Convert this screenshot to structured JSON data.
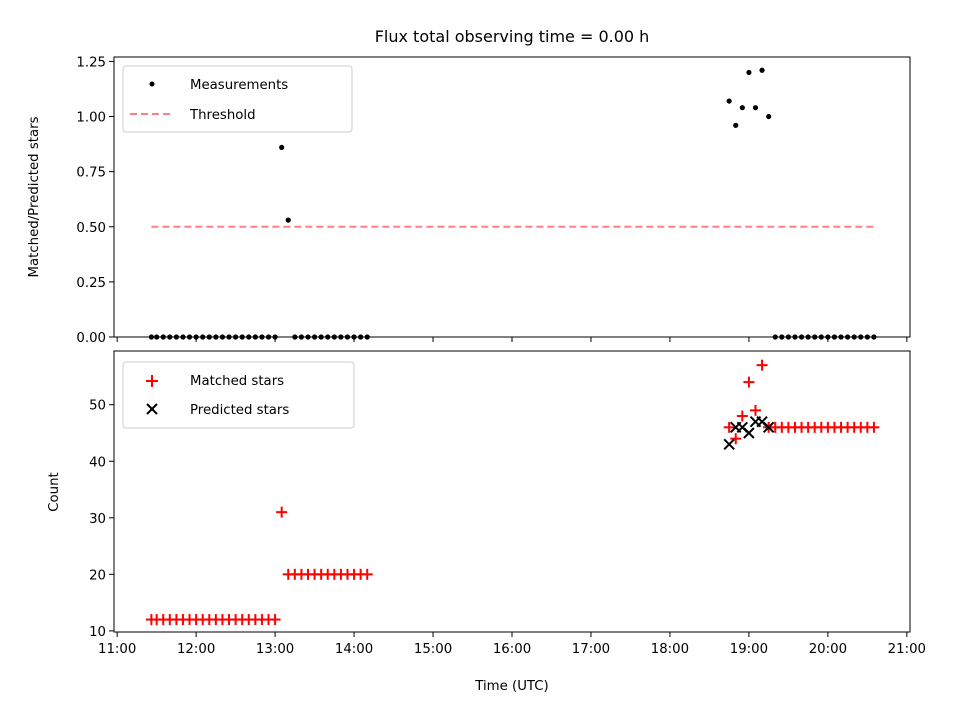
{
  "title": "Flux total observing time = 0.00 h",
  "chart_data": [
    {
      "type": "scatter",
      "ylabel": "Matched/Predicted stars",
      "xlim_hours": [
        10.96,
        21.04
      ],
      "ylim": [
        0,
        1.27
      ],
      "yticks": [
        "0.00",
        "0.25",
        "0.50",
        "0.75",
        "1.00",
        "1.25"
      ],
      "legend": {
        "placement": "top-left"
      },
      "series": [
        {
          "name": "Measurements",
          "marker": "dot",
          "color": "#000000",
          "x": [
            "11:26",
            "11:30",
            "11:35",
            "11:40",
            "11:45",
            "11:50",
            "11:55",
            "12:00",
            "12:05",
            "12:10",
            "12:15",
            "12:20",
            "12:25",
            "12:30",
            "12:35",
            "12:40",
            "12:45",
            "12:50",
            "12:55",
            "13:00",
            "13:05",
            "13:10",
            "13:15",
            "13:20",
            "13:25",
            "13:30",
            "13:35",
            "13:40",
            "13:45",
            "13:50",
            "13:55",
            "14:00",
            "14:05",
            "14:10",
            "18:45",
            "18:50",
            "18:55",
            "19:00",
            "19:05",
            "19:10",
            "19:15",
            "19:20",
            "19:25",
            "19:30",
            "19:35",
            "19:40",
            "19:45",
            "19:50",
            "19:55",
            "20:00",
            "20:05",
            "20:10",
            "20:15",
            "20:20",
            "20:25",
            "20:30",
            "20:35"
          ],
          "y": [
            0,
            0,
            0,
            0,
            0,
            0,
            0,
            0,
            0,
            0,
            0,
            0,
            0,
            0,
            0,
            0,
            0,
            0,
            0,
            0,
            0.86,
            0.53,
            0,
            0,
            0,
            0,
            0,
            0,
            0,
            0,
            0,
            0,
            0,
            0,
            1.07,
            0.96,
            1.04,
            1.2,
            1.04,
            1.21,
            1.0,
            0,
            0,
            0,
            0,
            0,
            0,
            0,
            0,
            0,
            0,
            0,
            0,
            0,
            0,
            0,
            0
          ]
        },
        {
          "name": "Threshold",
          "style": "dashed",
          "color": "#ff7f7f",
          "x": [
            "11:26",
            "20:35"
          ],
          "y": [
            0.5,
            0.5
          ]
        }
      ]
    },
    {
      "type": "scatter",
      "xlabel": "Time (UTC)",
      "ylabel": "Count",
      "xlim_hours": [
        10.96,
        21.04
      ],
      "ylim": [
        9.8,
        59.5
      ],
      "yticks": [
        "10",
        "20",
        "30",
        "40",
        "50"
      ],
      "xticks": [
        "11:00",
        "12:00",
        "13:00",
        "14:00",
        "15:00",
        "16:00",
        "17:00",
        "18:00",
        "19:00",
        "20:00",
        "21:00"
      ],
      "legend": {
        "placement": "top-left"
      },
      "series": [
        {
          "name": "Matched stars",
          "marker": "plus",
          "color": "#ff0000",
          "x": [
            "11:26",
            "11:30",
            "11:35",
            "11:40",
            "11:45",
            "11:50",
            "11:55",
            "12:00",
            "12:05",
            "12:10",
            "12:15",
            "12:20",
            "12:25",
            "12:30",
            "12:35",
            "12:40",
            "12:45",
            "12:50",
            "12:55",
            "13:00",
            "13:05",
            "13:10",
            "13:15",
            "13:20",
            "13:25",
            "13:30",
            "13:35",
            "13:40",
            "13:45",
            "13:50",
            "13:55",
            "14:00",
            "14:05",
            "14:10",
            "18:45",
            "18:50",
            "18:55",
            "19:00",
            "19:05",
            "19:10",
            "19:15",
            "19:20",
            "19:25",
            "19:30",
            "19:35",
            "19:40",
            "19:45",
            "19:50",
            "19:55",
            "20:00",
            "20:05",
            "20:10",
            "20:15",
            "20:20",
            "20:25",
            "20:30",
            "20:35"
          ],
          "y": [
            12,
            12,
            12,
            12,
            12,
            12,
            12,
            12,
            12,
            12,
            12,
            12,
            12,
            12,
            12,
            12,
            12,
            12,
            12,
            12,
            31,
            20,
            20,
            20,
            20,
            20,
            20,
            20,
            20,
            20,
            20,
            20,
            20,
            20,
            46,
            44,
            48,
            54,
            49,
            57,
            46,
            46,
            46,
            46,
            46,
            46,
            46,
            46,
            46,
            46,
            46,
            46,
            46,
            46,
            46,
            46,
            46
          ]
        },
        {
          "name": "Predicted stars",
          "marker": "x",
          "color": "#000000",
          "x": [
            "18:45",
            "18:50",
            "18:55",
            "19:00",
            "19:05",
            "19:10",
            "19:15"
          ],
          "y": [
            43,
            46,
            46,
            45,
            47,
            47,
            46
          ]
        }
      ]
    }
  ]
}
